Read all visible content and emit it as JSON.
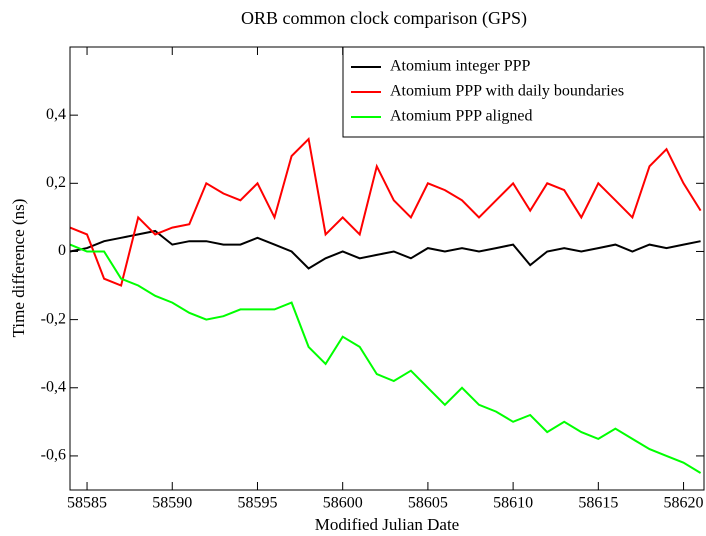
{
  "chart_data": {
    "type": "line",
    "title": "ORB common clock comparison (GPS)",
    "x_label": "Modified Julian Date",
    "y_label": "Time difference (ns)",
    "x": [
      58584,
      58585,
      58586,
      58587,
      58588,
      58589,
      58590,
      58591,
      58592,
      58593,
      58594,
      58595,
      58596,
      58597,
      58598,
      58599,
      58600,
      58601,
      58602,
      58603,
      58604,
      58605,
      58606,
      58607,
      58608,
      58609,
      58610,
      58611,
      58612,
      58613,
      58614,
      58615,
      58616,
      58617,
      58618,
      58619,
      58620,
      58621
    ],
    "series": [
      {
        "name": "Atomium integer PPP",
        "color": "#000000",
        "values": [
          0,
          0.01,
          0.03,
          0.04,
          0.05,
          0.06,
          0.02,
          0.03,
          0.03,
          0.02,
          0.02,
          0.04,
          0.02,
          0.0,
          -0.05,
          -0.02,
          0.0,
          -0.02,
          -0.01,
          0.0,
          -0.02,
          0.01,
          0.0,
          0.01,
          0.0,
          0.01,
          0.02,
          -0.04,
          0.0,
          0.01,
          0.0,
          0.01,
          0.02,
          0.0,
          0.02,
          0.01,
          0.02,
          0.03
        ]
      },
      {
        "name": "Atomium PPP with daily boundaries",
        "color": "#ff0000",
        "values": [
          0.07,
          0.05,
          -0.08,
          -0.1,
          0.1,
          0.05,
          0.07,
          0.08,
          0.2,
          0.17,
          0.15,
          0.2,
          0.1,
          0.28,
          0.33,
          0.05,
          0.1,
          0.05,
          0.25,
          0.15,
          0.1,
          0.2,
          0.18,
          0.15,
          0.1,
          0.15,
          0.2,
          0.12,
          0.2,
          0.18,
          0.1,
          0.2,
          0.15,
          0.1,
          0.25,
          0.3,
          0.2,
          0.12
        ]
      },
      {
        "name": "Atomium PPP aligned",
        "color": "#00ff00",
        "values": [
          0.02,
          0.0,
          0.0,
          -0.08,
          -0.1,
          -0.13,
          -0.15,
          -0.18,
          -0.2,
          -0.19,
          -0.17,
          -0.17,
          -0.17,
          -0.15,
          -0.28,
          -0.33,
          -0.25,
          -0.28,
          -0.36,
          -0.38,
          -0.35,
          -0.4,
          -0.45,
          -0.4,
          -0.45,
          -0.47,
          -0.5,
          -0.48,
          -0.53,
          -0.5,
          -0.53,
          -0.55,
          -0.52,
          -0.55,
          -0.58,
          -0.6,
          -0.62,
          -0.65
        ]
      }
    ],
    "xlim": [
      58584,
      58621.2
    ],
    "xticks": [
      58585,
      58590,
      58595,
      58600,
      58605,
      58610,
      58615,
      58620
    ],
    "ylim": [
      -0.7,
      0.6
    ],
    "yticks": [
      {
        "value": -0.6,
        "label": "-0,6"
      },
      {
        "value": -0.4,
        "label": "-0,4"
      },
      {
        "value": -0.2,
        "label": "-0,2"
      },
      0,
      {
        "value": 0.2,
        "label": "0,2"
      },
      {
        "value": 0.4,
        "label": "0,4"
      }
    ],
    "legend": "upper right"
  }
}
